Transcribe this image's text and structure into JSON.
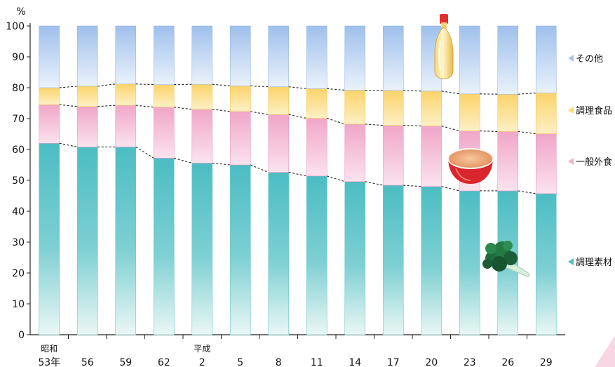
{
  "chart_data": {
    "type": "bar",
    "stacked": true,
    "ylabel": "%",
    "ylim": [
      0,
      100
    ],
    "yticks": [
      0,
      10,
      20,
      30,
      40,
      50,
      60,
      70,
      80,
      90,
      100
    ],
    "categories": [
      "53年",
      "56",
      "59",
      "62",
      "2",
      "5",
      "8",
      "11",
      "14",
      "17",
      "20",
      "23",
      "26",
      "29"
    ],
    "era_labels": [
      {
        "index": 0,
        "text": "昭和"
      },
      {
        "index": 4,
        "text": "平成"
      }
    ],
    "series": [
      {
        "name": "調理素材",
        "color": "#52bec4",
        "values": [
          62.0,
          60.8,
          60.8,
          57.2,
          55.6,
          55.0,
          52.6,
          51.4,
          49.6,
          48.4,
          48.0,
          46.6,
          46.6,
          45.7
        ]
      },
      {
        "name": "一般外食",
        "color": "#f2b3d0",
        "values": [
          12.5,
          13.1,
          13.5,
          16.5,
          17.4,
          17.3,
          18.7,
          18.7,
          18.6,
          19.4,
          19.6,
          19.4,
          19.2,
          19.4
        ]
      },
      {
        "name": "調理食品",
        "color": "#fbd873",
        "values": [
          5.5,
          6.6,
          6.9,
          7.3,
          8.1,
          8.3,
          9.0,
          9.6,
          11.0,
          11.3,
          11.3,
          12.0,
          12.1,
          13.2
        ]
      },
      {
        "name": "その他",
        "color": "#a9c6ee",
        "values": [
          20.0,
          19.5,
          18.8,
          19.0,
          18.9,
          19.4,
          19.7,
          20.3,
          20.8,
          20.9,
          21.1,
          22.0,
          22.1,
          21.7
        ]
      }
    ],
    "legend_placement": "right",
    "grid": false,
    "dashed_connectors": true
  },
  "illustrations": {
    "bottle": "mayonnaise-bottle-icon",
    "bowl": "soup-bowl-icon",
    "vegetable": "broccoli-icon"
  }
}
